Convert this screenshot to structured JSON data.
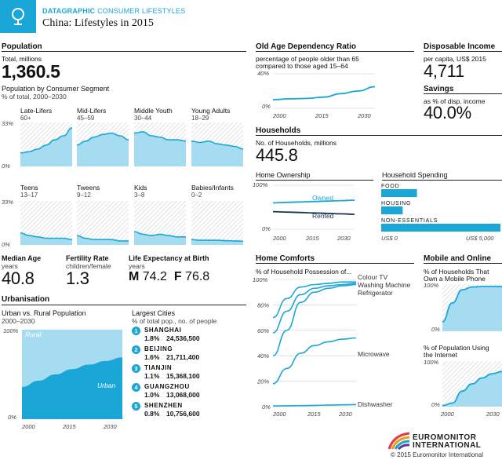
{
  "header": {
    "kicker_bold": "DATAGRAPHIC",
    "kicker_light": "CONSUMER LIFESTYLES",
    "title": "China: Lifestyles in 2015"
  },
  "population": {
    "heading": "Population",
    "total_label": "Total, millions",
    "total_value": "1,360.5",
    "segment_title": "Population by Consumer Segment",
    "segment_sub": "% of total, 2000–2030",
    "ytop": "33%",
    "ybottom": "0%"
  },
  "median_age": {
    "title": "Median Age",
    "unit": "years",
    "value": "40.8"
  },
  "fertility": {
    "title": "Fertility Rate",
    "unit": "children/female",
    "value": "1.3"
  },
  "life_expectancy": {
    "title": "Life Expectancy at Birth",
    "unit": "years",
    "m_label": "M",
    "m_value": "74.2",
    "f_label": "F",
    "f_value": "76.8"
  },
  "urbanisation": {
    "heading": "Urbanisation",
    "chart_title": "Urban vs. Rural Population",
    "chart_sub": "2000–2030",
    "rural_label": "Rural",
    "urban_label": "Urban",
    "ytop": "100%",
    "ybottom": "0%",
    "xticks": [
      "2000",
      "2015",
      "2030"
    ]
  },
  "largest_cities": {
    "title": "Largest Cities",
    "sub": "% of total pop., no. of people",
    "cities": [
      {
        "rank": "1",
        "name": "SHANGHAI",
        "pct": "1.8%",
        "people": "24,536,500"
      },
      {
        "rank": "2",
        "name": "BEIJING",
        "pct": "1.6%",
        "people": "21,711,400"
      },
      {
        "rank": "3",
        "name": "TIANJIN",
        "pct": "1.1%",
        "people": "15,368,100"
      },
      {
        "rank": "4",
        "name": "GUANGZHOU",
        "pct": "1.0%",
        "people": "13,068,000"
      },
      {
        "rank": "5",
        "name": "SHENZHEN",
        "pct": "0.8%",
        "people": "10,756,600"
      }
    ]
  },
  "old_age": {
    "title": "Old Age Dependency Ratio",
    "sub1": "percentage of people older than 65",
    "sub2": "compared to those aged 15–64",
    "ytop": "40%",
    "ybottom": "0%",
    "xticks": [
      "2000",
      "2015",
      "2030"
    ]
  },
  "disposable": {
    "title": "Disposable Income",
    "sub": "per capita, US$ 2015",
    "value": "4,711"
  },
  "savings": {
    "title": "Savings",
    "sub": "as % of disp. income",
    "value": "40.0%"
  },
  "households": {
    "heading": "Households",
    "sub": "No. of Households, millions",
    "value": "445.8"
  },
  "home_ownership": {
    "title": "Home Ownership",
    "owned_label": "Owned",
    "rented_label": "Rented",
    "ytop": "100%",
    "ybottom": "0%",
    "xticks": [
      "2000",
      "2015",
      "2030"
    ]
  },
  "household_spending": {
    "title": "Household Spending",
    "bars": [
      {
        "label": "FOOD"
      },
      {
        "label": "HOUSING"
      },
      {
        "label": "NON-ESSENTIALS"
      }
    ],
    "xmin": "US$ 0",
    "xmax": "US$ 5,000"
  },
  "home_comforts": {
    "heading": "Home Comforts",
    "title": "% of Household Possession of...",
    "yticks": [
      "100%",
      "80%",
      "60%",
      "40%",
      "20%",
      "0%"
    ],
    "xticks": [
      "2000",
      "2015",
      "2030"
    ],
    "labels": [
      "Colour TV",
      "Washing Machine",
      "Refrigerator",
      "Microwave",
      "Dishwasher"
    ]
  },
  "mobile_online": {
    "heading": "Mobile and Online",
    "mobile_title1": "% of Households That",
    "mobile_title2": "Own a Mobile Phone",
    "internet_title1": "% of Population Using",
    "internet_title2": "the Internet",
    "ytop": "100%",
    "ybottom": "0%",
    "xticks": [
      "2000",
      "2015",
      "2030"
    ]
  },
  "footer": {
    "logo_line1": "EUROMONITOR",
    "logo_line2": "INTERNATIONAL",
    "copyright": "© 2015 Euromonitor International"
  },
  "colors": {
    "accent": "#1aa6d6",
    "light_fill": "#a6dcef",
    "hatch": "#d9d9d9",
    "dark_line": "#1b3550"
  },
  "chart_data": [
    {
      "type": "area",
      "title": "Population by Consumer Segment",
      "x": [
        2000,
        2005,
        2010,
        2015,
        2020,
        2025,
        2030
      ],
      "ylim": [
        0,
        33
      ],
      "series": [
        {
          "name": "Late-Lifers",
          "age": "60+",
          "values": [
            10,
            11,
            13,
            16,
            20,
            23,
            29
          ]
        },
        {
          "name": "Mid-Lifers",
          "age": "45–59",
          "values": [
            16,
            19,
            22,
            24,
            25,
            23,
            20
          ]
        },
        {
          "name": "Middle Youth",
          "age": "30–44",
          "values": [
            25,
            26,
            23,
            22,
            20,
            20,
            19
          ]
        },
        {
          "name": "Young Adults",
          "age": "18–29",
          "values": [
            19,
            18,
            19,
            17,
            16,
            15,
            13
          ]
        },
        {
          "name": "Teens",
          "age": "13–17",
          "values": [
            9,
            7,
            6,
            5,
            5,
            5,
            4
          ]
        },
        {
          "name": "Tweens",
          "age": "9–12",
          "values": [
            7,
            5,
            4,
            4,
            4,
            3,
            3
          ]
        },
        {
          "name": "Kids",
          "age": "3–8",
          "values": [
            10,
            8,
            7,
            8,
            7,
            6,
            6
          ]
        },
        {
          "name": "Babies/Infants",
          "age": "0–2",
          "values": [
            4,
            3.5,
            3.5,
            3.5,
            3.2,
            3,
            2.8
          ]
        }
      ]
    },
    {
      "type": "area",
      "title": "Urban vs. Rural Population",
      "x": [
        2000,
        2005,
        2010,
        2015,
        2020,
        2025,
        2030
      ],
      "ylim": [
        0,
        100
      ],
      "series": [
        {
          "name": "Urban",
          "values": [
            36,
            43,
            50,
            56,
            61,
            65,
            69
          ]
        },
        {
          "name": "Rural",
          "values": [
            64,
            57,
            50,
            44,
            39,
            35,
            31
          ]
        }
      ]
    },
    {
      "type": "line",
      "title": "Old Age Dependency Ratio",
      "x": [
        2000,
        2005,
        2010,
        2015,
        2020,
        2025,
        2030
      ],
      "ylim": [
        0,
        40
      ],
      "series": [
        {
          "name": "",
          "values": [
            10,
            11,
            11.5,
            13,
            17,
            20,
            25
          ]
        }
      ]
    },
    {
      "type": "line",
      "title": "Home Ownership",
      "x": [
        2000,
        2005,
        2010,
        2015,
        2020,
        2025,
        2030
      ],
      "ylim": [
        0,
        100
      ],
      "series": [
        {
          "name": "Owned",
          "values": [
            60,
            61,
            62,
            63,
            64,
            65,
            66
          ]
        },
        {
          "name": "Rented",
          "values": [
            40,
            39,
            38,
            37,
            36,
            35,
            34
          ]
        }
      ]
    },
    {
      "type": "bar",
      "title": "Household Spending",
      "categories": [
        "FOOD",
        "HOUSING",
        "NON-ESSENTIALS"
      ],
      "values": [
        1500,
        900,
        5000
      ],
      "xlim": [
        0,
        5000
      ]
    },
    {
      "type": "line",
      "title": "% of Household Possession of...",
      "x": [
        2000,
        2005,
        2010,
        2015,
        2020,
        2025,
        2030
      ],
      "ylim": [
        0,
        100
      ],
      "series": [
        {
          "name": "Colour TV",
          "values": [
            70,
            85,
            94,
            96,
            97,
            98,
            98
          ]
        },
        {
          "name": "Washing Machine",
          "values": [
            58,
            75,
            88,
            93,
            95,
            96,
            97
          ]
        },
        {
          "name": "Refrigerator",
          "values": [
            40,
            60,
            82,
            90,
            93,
            95,
            96
          ]
        },
        {
          "name": "Microwave",
          "values": [
            18,
            30,
            42,
            48,
            51,
            53,
            54
          ]
        },
        {
          "name": "Dishwasher",
          "values": [
            0.5,
            0.7,
            0.8,
            1,
            1.2,
            1.4,
            1.6
          ]
        }
      ]
    },
    {
      "type": "line",
      "title": "% of Households That Own a Mobile Phone",
      "x": [
        2000,
        2005,
        2010,
        2015,
        2020,
        2025,
        2030
      ],
      "ylim": [
        0,
        100
      ],
      "series": [
        {
          "name": "",
          "values": [
            20,
            60,
            88,
            94,
            95,
            95,
            95
          ]
        }
      ]
    },
    {
      "type": "line",
      "title": "% of Population Using the Internet",
      "x": [
        2000,
        2005,
        2010,
        2015,
        2020,
        2025,
        2030
      ],
      "ylim": [
        0,
        100
      ],
      "series": [
        {
          "name": "",
          "values": [
            2,
            8,
            34,
            50,
            63,
            72,
            77
          ]
        }
      ]
    }
  ]
}
